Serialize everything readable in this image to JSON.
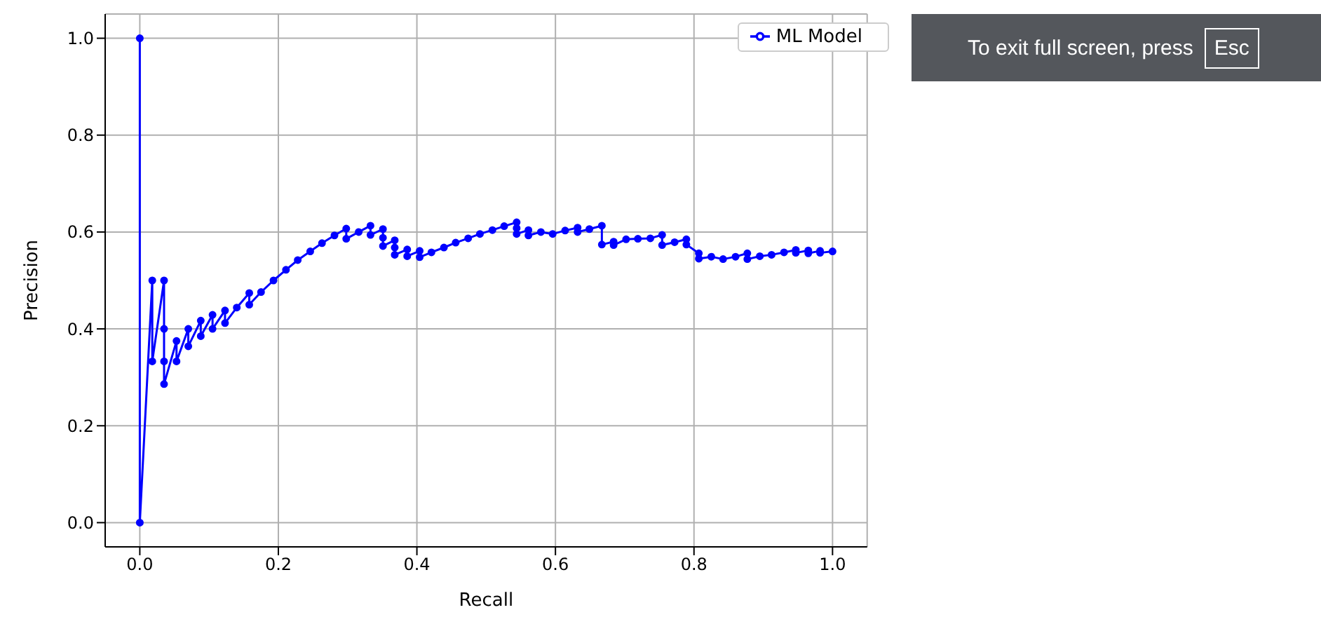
{
  "chart_data": {
    "type": "line",
    "xlabel": "Recall",
    "ylabel": "Precision",
    "xlim": [
      -0.05,
      1.05
    ],
    "ylim": [
      -0.05,
      1.05
    ],
    "xticks": [
      {
        "value": 0,
        "label": "0.0"
      },
      {
        "value": 0.2,
        "label": "0.2"
      },
      {
        "value": 0.4,
        "label": "0.4"
      },
      {
        "value": 0.6,
        "label": "0.6"
      },
      {
        "value": 0.8,
        "label": "0.8"
      },
      {
        "value": 1,
        "label": "1.0"
      }
    ],
    "yticks": [
      {
        "value": 0,
        "label": "0.0"
      },
      {
        "value": 0.2,
        "label": "0.2"
      },
      {
        "value": 0.4,
        "label": "0.4"
      },
      {
        "value": 0.6,
        "label": "0.6"
      },
      {
        "value": 0.8,
        "label": "0.8"
      },
      {
        "value": 1,
        "label": "1.0"
      }
    ],
    "grid": true,
    "legend": "top right",
    "marker": "circle",
    "line_style": "solid",
    "annotations": [
      "To exit full screen, press",
      "Esc"
    ],
    "series": [
      {
        "name": "ML Model",
        "color": "#0000ff",
        "x": [
          0,
          0,
          0.018,
          0.018,
          0.035,
          0.035,
          0.035,
          0.035,
          0.053,
          0.053,
          0.07,
          0.07,
          0.088,
          0.088,
          0.105,
          0.105,
          0.123,
          0.123,
          0.14,
          0.158,
          0.158,
          0.175,
          0.193,
          0.211,
          0.228,
          0.246,
          0.263,
          0.281,
          0.298,
          0.298,
          0.316,
          0.333,
          0.333,
          0.351,
          0.351,
          0.351,
          0.368,
          0.368,
          0.368,
          0.386,
          0.386,
          0.404,
          0.404,
          0.421,
          0.439,
          0.456,
          0.474,
          0.491,
          0.509,
          0.526,
          0.544,
          0.544,
          0.544,
          0.561,
          0.561,
          0.579,
          0.596,
          0.614,
          0.632,
          0.632,
          0.649,
          0.667,
          0.667,
          0.684,
          0.684,
          0.702,
          0.719,
          0.737,
          0.754,
          0.754,
          0.772,
          0.789,
          0.789,
          0.807,
          0.807,
          0.825,
          0.842,
          0.86,
          0.877,
          0.877,
          0.895,
          0.912,
          0.93,
          0.947,
          0.947,
          0.965,
          0.965,
          0.982,
          0.982,
          1.0
        ],
        "values": [
          1,
          0,
          0.5,
          0.333,
          0.5,
          0.4,
          0.333,
          0.286,
          0.375,
          0.333,
          0.4,
          0.364,
          0.417,
          0.385,
          0.429,
          0.4,
          0.438,
          0.412,
          0.444,
          0.474,
          0.45,
          0.476,
          0.5,
          0.522,
          0.542,
          0.56,
          0.577,
          0.593,
          0.607,
          0.586,
          0.6,
          0.613,
          0.594,
          0.606,
          0.588,
          0.571,
          0.583,
          0.568,
          0.553,
          0.564,
          0.55,
          0.561,
          0.548,
          0.558,
          0.568,
          0.578,
          0.587,
          0.596,
          0.604,
          0.612,
          0.62,
          0.608,
          0.596,
          0.604,
          0.593,
          0.6,
          0.596,
          0.603,
          0.609,
          0.6,
          0.606,
          0.613,
          0.574,
          0.58,
          0.573,
          0.585,
          0.586,
          0.587,
          0.594,
          0.573,
          0.579,
          0.585,
          0.574,
          0.556,
          0.545,
          0.549,
          0.544,
          0.549,
          0.556,
          0.544,
          0.55,
          0.553,
          0.558,
          0.563,
          0.557,
          0.562,
          0.556,
          0.561,
          0.557,
          0.56
        ]
      }
    ]
  }
}
